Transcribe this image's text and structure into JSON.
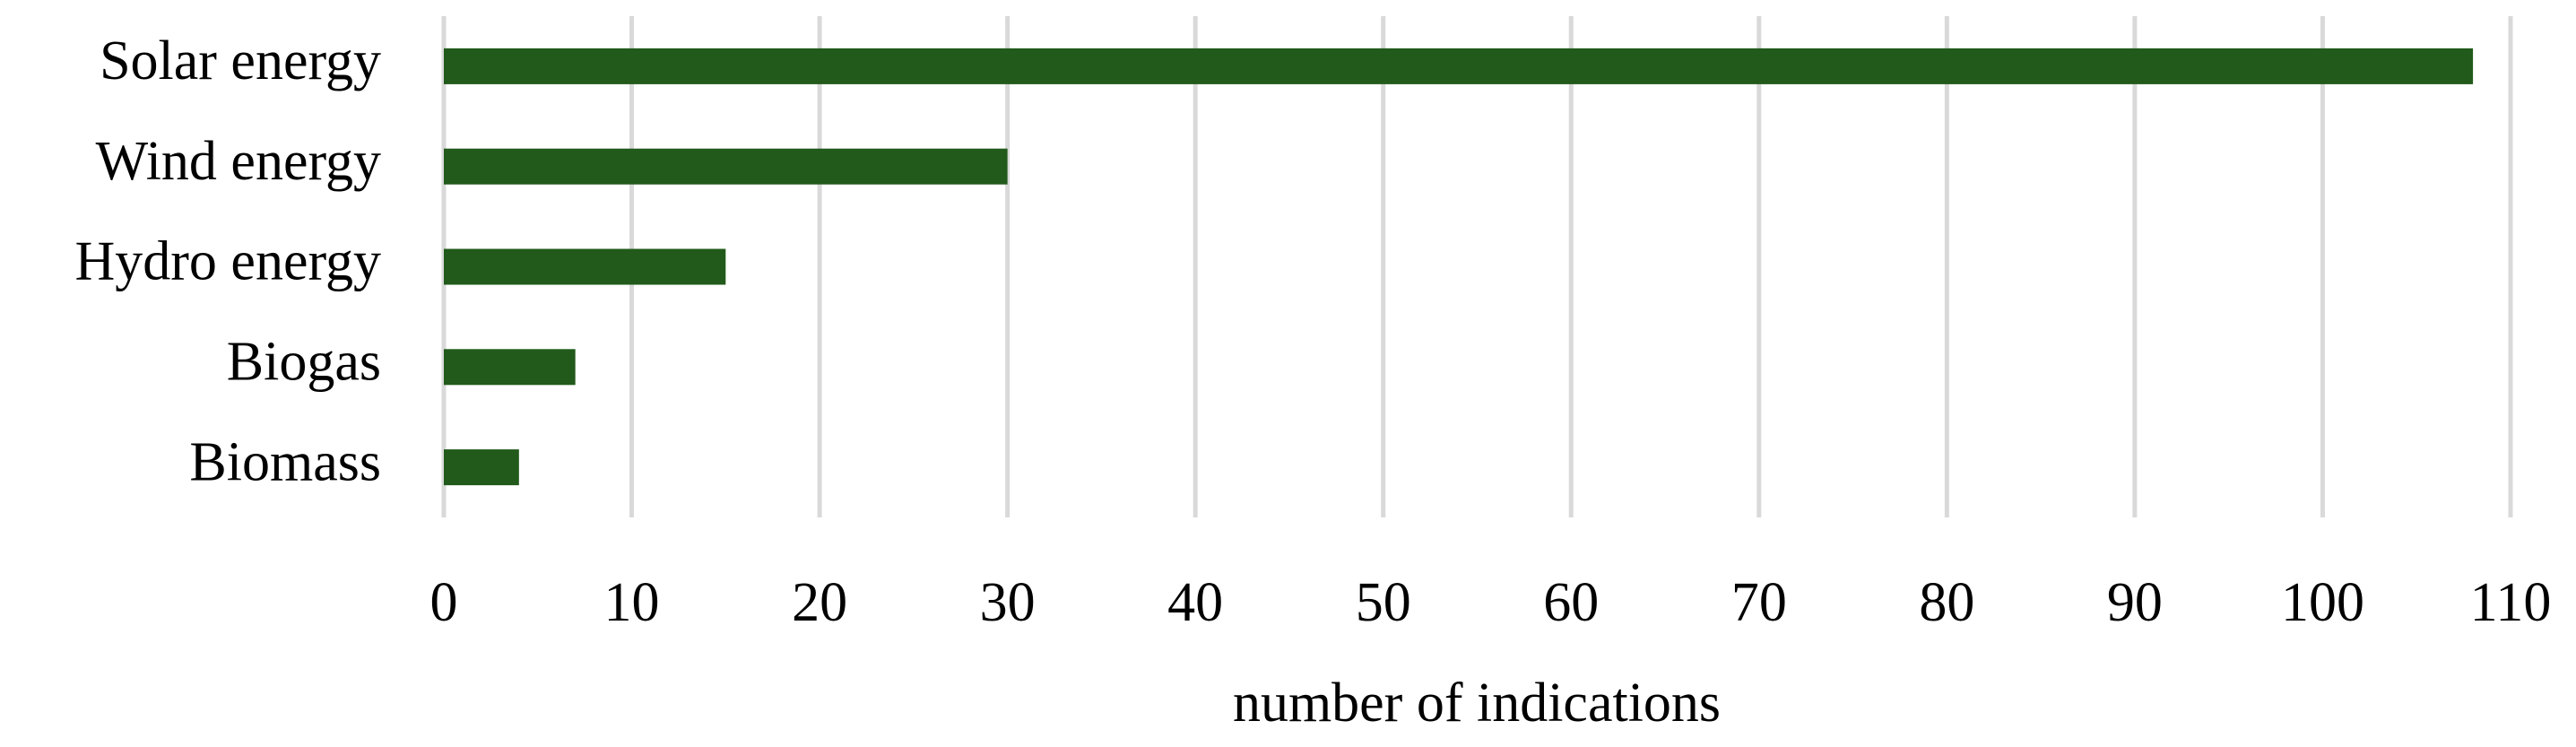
{
  "chart_data": {
    "type": "hbar",
    "categories": [
      "Solar energy",
      "Wind energy",
      "Hydro energy",
      "Biogas",
      "Biomass"
    ],
    "values": [
      108,
      30,
      15,
      7,
      4
    ],
    "color": "#215a1a",
    "xlabel": "number of indications",
    "xlim": [
      0,
      110
    ],
    "xticks": [
      0,
      10,
      20,
      30,
      40,
      50,
      60,
      70,
      80,
      90,
      100,
      110
    ],
    "grid": true
  }
}
